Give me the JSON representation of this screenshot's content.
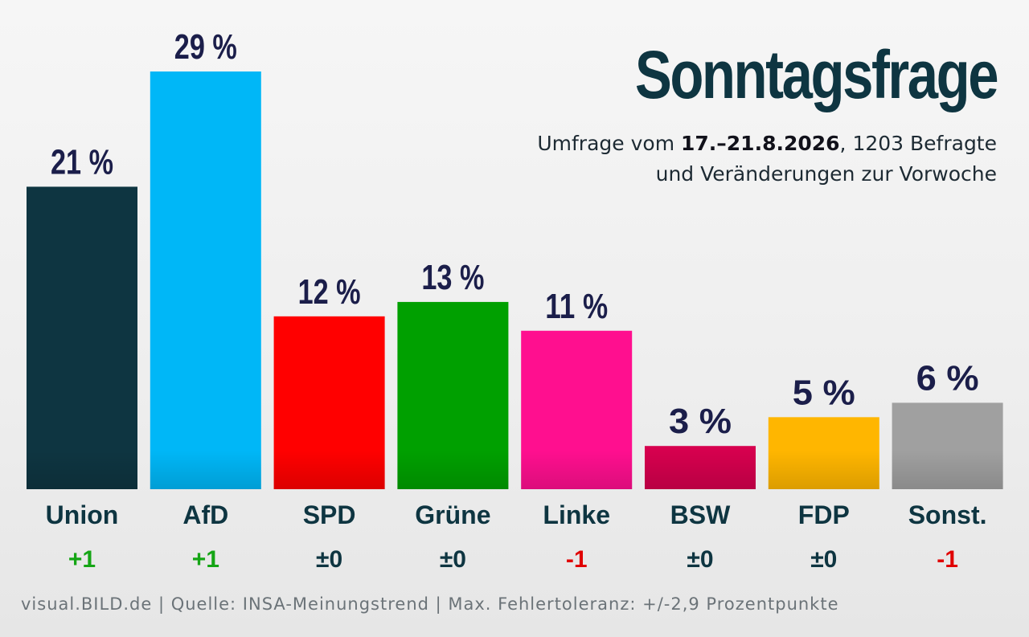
{
  "chart_data": {
    "type": "bar",
    "title": "Sonntagsfrage",
    "subtitle_line1_pre": "Umfrage vom ",
    "subtitle_line1_bold": "17.–21.8.2026",
    "subtitle_line1_post": ", 1203 Befragte",
    "subtitle_line2": "und Veränderungen zur Vorwoche",
    "categories": [
      "Union",
      "AfD",
      "SPD",
      "Grüne",
      "Linke",
      "BSW",
      "FDP",
      "Sonst."
    ],
    "values": [
      21,
      29,
      12,
      13,
      11,
      3,
      5,
      6
    ],
    "value_labels": [
      "21 %",
      "29 %",
      "12 %",
      "13 %",
      "11 %",
      "3 %",
      "5 %",
      "6 %"
    ],
    "changes": [
      "+1",
      "+1",
      "±0",
      "±0",
      "-1",
      "±0",
      "±0",
      "-1"
    ],
    "colors": [
      "#0e3541",
      "#00b7f7",
      "#ff0000",
      "#00a000",
      "#ff0f8f",
      "#d6004e",
      "#ffb600",
      "#a0a0a0"
    ],
    "change_colors": {
      "positive": "#15a515",
      "neutral": "#0e3541",
      "negative": "#e00000"
    },
    "ylim": [
      0,
      29
    ],
    "xlabel": "",
    "ylabel": "",
    "grid": false,
    "legend": "none"
  },
  "footer": "visual.BILD.de | Quelle: INSA-Meinungstrend | Max. Fehlertoleranz: +/-2,9 Prozentpunkte"
}
